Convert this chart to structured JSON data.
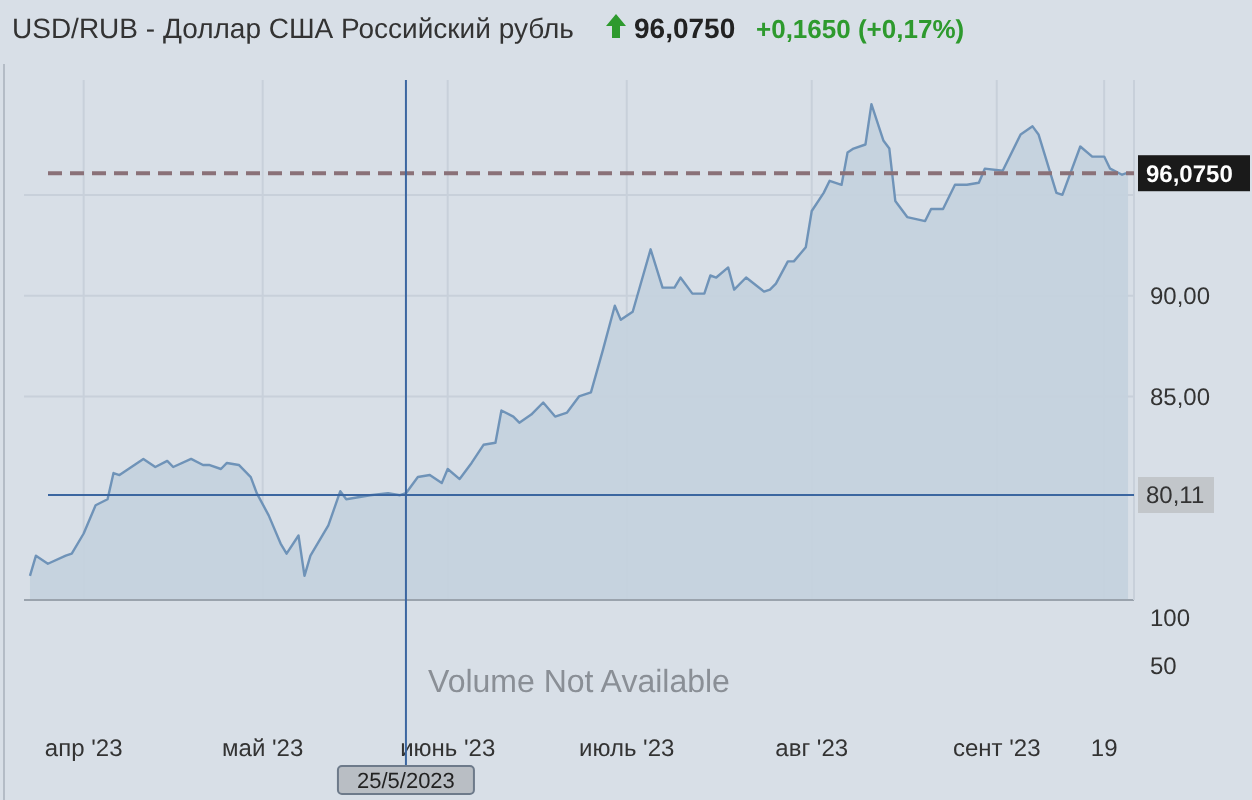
{
  "chart_data": [
    {
      "type": "area",
      "title": "USD/RUB - Доллар США Российский рубль",
      "annotations": [
        "96,0750",
        "+0,1650 (+0,17%)"
      ],
      "color": "#6f93b8",
      "x": [
        "2023-03-23",
        "2023-03-24",
        "2023-03-26",
        "2023-03-29",
        "2023-03-30",
        "2023-04-01",
        "2023-04-03",
        "2023-04-05",
        "2023-04-06",
        "2023-04-07",
        "2023-04-11",
        "2023-04-13",
        "2023-04-15",
        "2023-04-16",
        "2023-04-19",
        "2023-04-21",
        "2023-04-22",
        "2023-04-24",
        "2023-04-25",
        "2023-04-27",
        "2023-04-29",
        "2023-04-30",
        "2023-05-02",
        "2023-05-04",
        "2023-05-05",
        "2023-05-07",
        "2023-05-08",
        "2023-05-09",
        "2023-05-12",
        "2023-05-14",
        "2023-05-15",
        "2023-05-17",
        "2023-05-19",
        "2023-05-22",
        "2023-05-24",
        "2023-05-25",
        "2023-05-27",
        "2023-05-29",
        "2023-05-31",
        "2023-06-01",
        "2023-06-03",
        "2023-06-05",
        "2023-06-07",
        "2023-06-09",
        "2023-06-10",
        "2023-06-12",
        "2023-06-13",
        "2023-06-15",
        "2023-06-17",
        "2023-06-19",
        "2023-06-21",
        "2023-06-23",
        "2023-06-25",
        "2023-06-27",
        "2023-06-29",
        "2023-06-30",
        "2023-07-02",
        "2023-07-05",
        "2023-07-07",
        "2023-07-09",
        "2023-07-10",
        "2023-07-12",
        "2023-07-14",
        "2023-07-15",
        "2023-07-16",
        "2023-07-18",
        "2023-07-19",
        "2023-07-21",
        "2023-07-24",
        "2023-07-25",
        "2023-07-26",
        "2023-07-28",
        "2023-07-29",
        "2023-07-31",
        "2023-08-01",
        "2023-08-03",
        "2023-08-04",
        "2023-08-06",
        "2023-08-07",
        "2023-08-08",
        "2023-08-10",
        "2023-08-11",
        "2023-08-13",
        "2023-08-14",
        "2023-08-15",
        "2023-08-17",
        "2023-08-20",
        "2023-08-21",
        "2023-08-23",
        "2023-08-25",
        "2023-08-27",
        "2023-08-29",
        "2023-08-30",
        "2023-09-02",
        "2023-09-05",
        "2023-09-07",
        "2023-09-08",
        "2023-09-11",
        "2023-09-12",
        "2023-09-15",
        "2023-09-17",
        "2023-09-19",
        "2023-09-20",
        "2023-09-22",
        "2023-09-23"
      ],
      "values": [
        76.1,
        77.1,
        76.7,
        77.1,
        77.2,
        78.2,
        79.6,
        79.9,
        81.2,
        81.1,
        81.9,
        81.5,
        81.8,
        81.5,
        81.9,
        81.6,
        81.6,
        81.4,
        81.7,
        81.6,
        81.0,
        80.2,
        79.1,
        77.7,
        77.2,
        78.1,
        76.1,
        77.1,
        78.6,
        80.3,
        79.9,
        80.0,
        80.1,
        80.2,
        80.1,
        80.2,
        81.0,
        81.1,
        80.7,
        81.4,
        80.9,
        81.7,
        82.6,
        82.7,
        84.3,
        84.0,
        83.7,
        84.1,
        84.7,
        84.0,
        84.2,
        85.0,
        85.2,
        87.3,
        89.5,
        88.8,
        89.2,
        92.3,
        90.4,
        90.4,
        90.9,
        90.1,
        90.1,
        91.0,
        90.9,
        91.4,
        90.3,
        90.9,
        90.2,
        90.3,
        90.6,
        91.7,
        91.7,
        92.4,
        94.2,
        95.1,
        95.7,
        95.5,
        97.1,
        97.3,
        97.5,
        99.5,
        97.7,
        97.3,
        94.7,
        93.9,
        93.7,
        94.3,
        94.3,
        95.5,
        95.5,
        95.6,
        96.3,
        96.2,
        98.0,
        98.4,
        98.0,
        95.1,
        95.0,
        97.4,
        96.9,
        96.9,
        96.3,
        96.0,
        96.1
      ],
      "xlim": [
        "2023-03-22",
        "2023-09-24"
      ],
      "xticks": [
        {
          "value": "2023-04-01",
          "label": "апр '23"
        },
        {
          "value": "2023-05-01",
          "label": "май '23"
        },
        {
          "value": "2023-06-01",
          "label": "июнь '23"
        },
        {
          "value": "2023-07-01",
          "label": "июль '23"
        },
        {
          "value": "2023-08-01",
          "label": "авг '23"
        },
        {
          "value": "2023-09-01",
          "label": "сент '23"
        },
        {
          "value": "2023-09-19",
          "label": "19"
        }
      ],
      "ylim": [
        74.9,
        100.7
      ],
      "yticks": [
        {
          "value": 85,
          "label": "85,00"
        },
        {
          "value": 90,
          "label": "90,00"
        },
        {
          "value": 95,
          "label": null
        }
      ],
      "grid": true,
      "ref_lines": [
        {
          "axis": "y",
          "value": 96.075,
          "label": "96,0750",
          "color": "#8a7178",
          "line_style": "dashed"
        },
        {
          "axis": "y",
          "value": 80.11,
          "label": "80,11",
          "color": "#3b66a0",
          "line_style": "solid"
        },
        {
          "axis": "x",
          "value": "2023-05-25",
          "label": "25/5/2023",
          "color": "#3b66a0",
          "line_style": "solid"
        }
      ]
    },
    {
      "type": "other",
      "annotations": [
        "Volume Not Available",
        "100",
        "50"
      ]
    }
  ]
}
